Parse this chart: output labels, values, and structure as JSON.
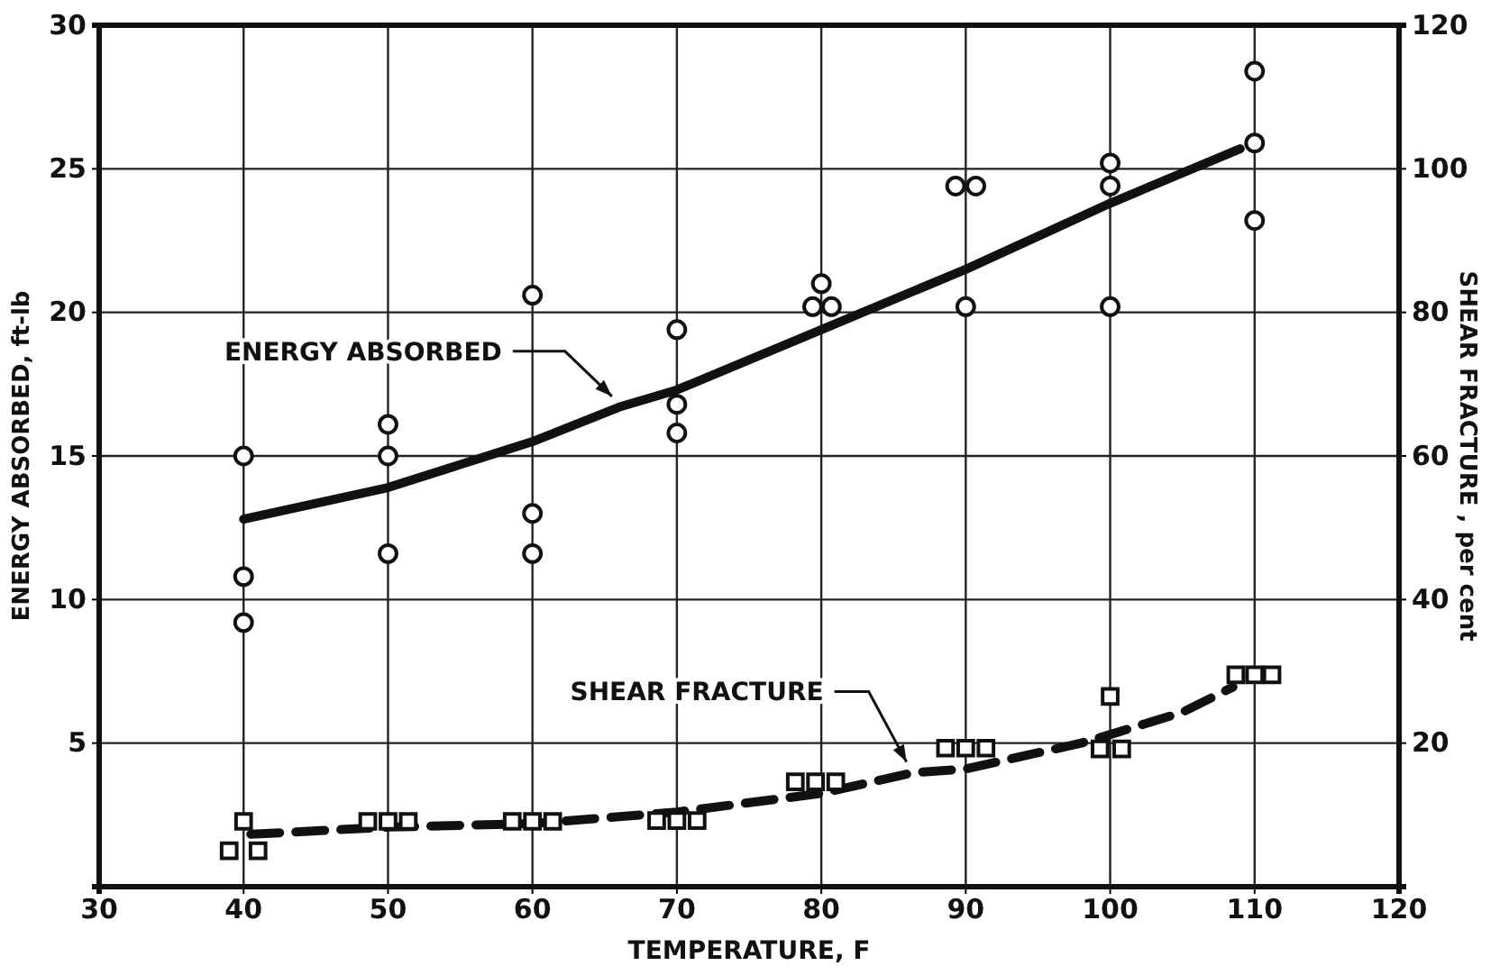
{
  "chart_data": {
    "type": "line",
    "xlabel": "TEMPERATURE, F",
    "ylabel": "ENERGY ABSORBED, ft-lb",
    "y2label": "SHEAR FRACTURE , per cent",
    "xlim": [
      30,
      120
    ],
    "xticks": [
      30,
      40,
      50,
      60,
      70,
      80,
      90,
      100,
      110,
      120
    ],
    "ylim": [
      0,
      30
    ],
    "yticks": [
      5,
      10,
      15,
      20,
      25,
      30
    ],
    "y2lim": [
      0,
      120
    ],
    "y2ticks": [
      20,
      40,
      60,
      80,
      100,
      120
    ],
    "grid": true,
    "annotations": [
      {
        "text": "ENERGY ABSORBED",
        "x": 66,
        "y": 16.7
      },
      {
        "text": "SHEAR FRACTURE",
        "x": 86.4,
        "y": 3.97
      }
    ],
    "series": [
      {
        "type": "scatter",
        "marker": "circle",
        "color": "#111111",
        "x": [
          40,
          40,
          40,
          50,
          50,
          50,
          60,
          60,
          60,
          70,
          70,
          70,
          80,
          79.4,
          80.7,
          89.3,
          90.7,
          90,
          100,
          100,
          100,
          110,
          110,
          110
        ],
        "values": [
          15,
          10.8,
          9.2,
          16.1,
          15,
          11.6,
          20.6,
          13,
          11.6,
          19.4,
          16.8,
          15.8,
          21,
          20.2,
          20.2,
          24.4,
          24.4,
          20.2,
          25.2,
          24.4,
          20.2,
          28.4,
          25.9,
          23.2
        ]
      },
      {
        "marker": "none",
        "line_style": "solid",
        "color": "#111111",
        "x": [
          40,
          50,
          60,
          66,
          70,
          80,
          90,
          100,
          109
        ],
        "values": [
          12.8,
          13.9,
          15.5,
          16.7,
          17.3,
          19.4,
          21.5,
          23.8,
          25.7
        ]
      },
      {
        "type": "scatter",
        "axis": "y2",
        "marker": "square",
        "color": "#111111",
        "x": [
          40,
          39,
          41,
          48.6,
          50,
          51.4,
          58.6,
          60,
          61.4,
          68.6,
          70,
          71.4,
          78.2,
          79.6,
          81,
          88.6,
          90,
          91.4,
          100,
          99.3,
          100.8,
          108.7,
          110,
          111.2
        ],
        "values": [
          9.1,
          5,
          5,
          9.1,
          9.1,
          9.1,
          9.1,
          9.1,
          9.1,
          9.2,
          9.2,
          9.2,
          14.6,
          14.6,
          14.6,
          19.3,
          19.3,
          19.3,
          26.5,
          19.2,
          19.2,
          29.5,
          29.5,
          29.5
        ]
      },
      {
        "axis": "y2",
        "marker": "none",
        "line_style": "dashed",
        "color": "#111111",
        "x": [
          40.5,
          50,
          60,
          70,
          80,
          86.4,
          90,
          98,
          100,
          105,
          108.5
        ],
        "values": [
          7.3,
          8.3,
          8.8,
          10.4,
          13,
          15.9,
          16.4,
          20,
          21.2,
          24.3,
          27.8
        ]
      }
    ]
  }
}
